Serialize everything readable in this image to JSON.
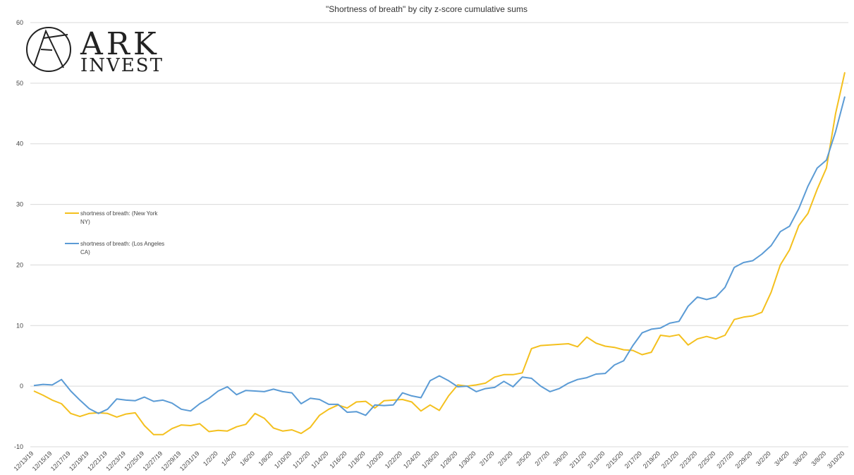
{
  "logo": {
    "line1": "ARK",
    "line2": "INVEST"
  },
  "chart_data": {
    "type": "line",
    "title": "\"Shortness of breath\" by city z-score cumulative sums",
    "xlabel": "",
    "ylabel": "",
    "ylim": [
      -10,
      60
    ],
    "yticks": [
      -10,
      0,
      10,
      20,
      30,
      40,
      50,
      60
    ],
    "grid": true,
    "legend_position": "left",
    "start_date": "2019-12-13",
    "xtick_labels": [
      "12/13/19",
      "12/15/19",
      "12/17/19",
      "12/19/19",
      "12/21/19",
      "12/23/19",
      "12/25/19",
      "12/27/19",
      "12/29/19",
      "12/31/19",
      "1/2/20",
      "1/4/20",
      "1/6/20",
      "1/8/20",
      "1/10/20",
      "1/12/20",
      "1/14/20",
      "1/16/20",
      "1/18/20",
      "1/20/20",
      "1/22/20",
      "1/24/20",
      "1/26/20",
      "1/28/20",
      "1/30/20",
      "2/1/20",
      "2/3/20",
      "2/5/20",
      "2/7/20",
      "2/9/20",
      "2/11/20",
      "2/13/20",
      "2/15/20",
      "2/17/20",
      "2/19/20",
      "2/21/20",
      "2/23/20",
      "2/25/20",
      "2/27/20",
      "2/29/20",
      "3/2/20",
      "3/4/20",
      "3/6/20",
      "3/8/20",
      "3/10/20"
    ],
    "series": [
      {
        "name": "shortness of breath: (New York NY)",
        "color": "#F4C01E",
        "values": [
          -0.8,
          -1.5,
          -2.3,
          -2.9,
          -4.5,
          -5,
          -4.5,
          -4.4,
          -4.5,
          -5.1,
          -4.6,
          -4.4,
          -6.5,
          -8,
          -8,
          -7,
          -6.4,
          -6.5,
          -6.2,
          -7.5,
          -7.3,
          -7.4,
          -6.7,
          -6.3,
          -4.5,
          -5.3,
          -6.9,
          -7.4,
          -7.2,
          -7.8,
          -6.8,
          -4.8,
          -3.8,
          -3.1,
          -3.6,
          -2.6,
          -2.5,
          -3.6,
          -2.4,
          -2.3,
          -2.2,
          -2.6,
          -4.1,
          -3.1,
          -4,
          -1.6,
          0.2,
          0,
          0.2,
          0.5,
          1.5,
          1.9,
          1.9,
          2.2,
          6.2,
          6.7,
          6.8,
          6.9,
          7,
          6.5,
          8.1,
          7.1,
          6.6,
          6.4,
          6,
          5.9,
          5.2,
          5.6,
          8.4,
          8.2,
          8.5,
          6.8,
          7.8,
          8.2,
          7.8,
          8.4,
          11,
          11.4,
          11.6,
          12.2,
          15.5,
          20,
          22.5,
          26.5,
          28.5,
          32.5,
          36,
          45,
          51.8
        ]
      },
      {
        "name": "shortness of breath: (Los Angeles CA)",
        "color": "#5B9BD5",
        "values": [
          0.1,
          0.3,
          0.2,
          1.1,
          -0.8,
          -2.3,
          -3.7,
          -4.5,
          -3.8,
          -2.1,
          -2.3,
          -2.4,
          -1.8,
          -2.5,
          -2.3,
          -2.8,
          -3.8,
          -4.1,
          -2.9,
          -2,
          -0.8,
          -0.1,
          -1.4,
          -0.7,
          -0.8,
          -0.9,
          -0.5,
          -0.9,
          -1.1,
          -2.9,
          -2,
          -2.2,
          -3,
          -3,
          -4.3,
          -4.2,
          -4.8,
          -3.1,
          -3.2,
          -3.1,
          -1.1,
          -1.6,
          -1.9,
          0.9,
          1.7,
          0.9,
          -0.1,
          0,
          -0.9,
          -0.4,
          -0.2,
          0.8,
          -0.1,
          1.5,
          1.3,
          0,
          -0.9,
          -0.4,
          0.5,
          1.1,
          1.4,
          2,
          2.1,
          3.5,
          4.2,
          6.7,
          8.8,
          9.4,
          9.6,
          10.4,
          10.7,
          13.2,
          14.7,
          14.3,
          14.7,
          16.3,
          19.6,
          20.4,
          20.7,
          21.8,
          23.2,
          25.5,
          26.4,
          29.3,
          33,
          36,
          37.3,
          42,
          47.8
        ]
      }
    ]
  }
}
